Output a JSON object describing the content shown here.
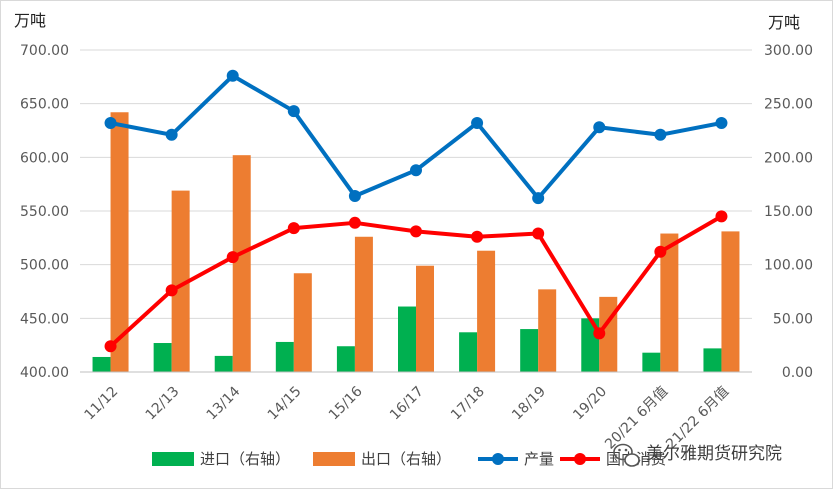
{
  "chart_data": {
    "type": "bar",
    "title": "",
    "left_axis_unit": "万吨",
    "right_axis_unit": "万吨",
    "categories": [
      "11/12",
      "12/13",
      "13/14",
      "14/15",
      "15/16",
      "16/17",
      "17/18",
      "18/19",
      "19/20",
      "20/21 6月值",
      "21/22 6月值"
    ],
    "left_ylim": [
      400,
      700
    ],
    "right_ylim": [
      0,
      300
    ],
    "left_ticks": [
      "400.00",
      "450.00",
      "500.00",
      "550.00",
      "600.00",
      "650.00",
      "700.00"
    ],
    "right_ticks": [
      "0.00",
      "50.00",
      "100.00",
      "150.00",
      "200.00",
      "250.00",
      "300.00"
    ],
    "grid": true,
    "legend_position": "bottom",
    "series": [
      {
        "name": "进口（右轴）",
        "kind": "bar",
        "axis": "right",
        "color": "#00b050",
        "values": [
          14,
          27,
          15,
          28,
          24,
          61,
          37,
          40,
          50,
          18,
          22
        ]
      },
      {
        "name": "出口（右轴）",
        "kind": "bar",
        "axis": "right",
        "color": "#ed7d31",
        "values": [
          242,
          169,
          202,
          92,
          126,
          99,
          113,
          77,
          70,
          129,
          131
        ]
      },
      {
        "name": "产量",
        "kind": "line",
        "axis": "left",
        "color": "#0070c0",
        "values": [
          632,
          621,
          676,
          643,
          564,
          588,
          632,
          562,
          628,
          621,
          632
        ]
      },
      {
        "name": "国内消费",
        "kind": "line",
        "axis": "left",
        "color": "#ff0000",
        "values": [
          424,
          476,
          507,
          534,
          539,
          531,
          526,
          529,
          436,
          512,
          545
        ]
      }
    ]
  },
  "watermark": {
    "icon": "wechat-icon",
    "text": "美尔雅期货研究院"
  }
}
